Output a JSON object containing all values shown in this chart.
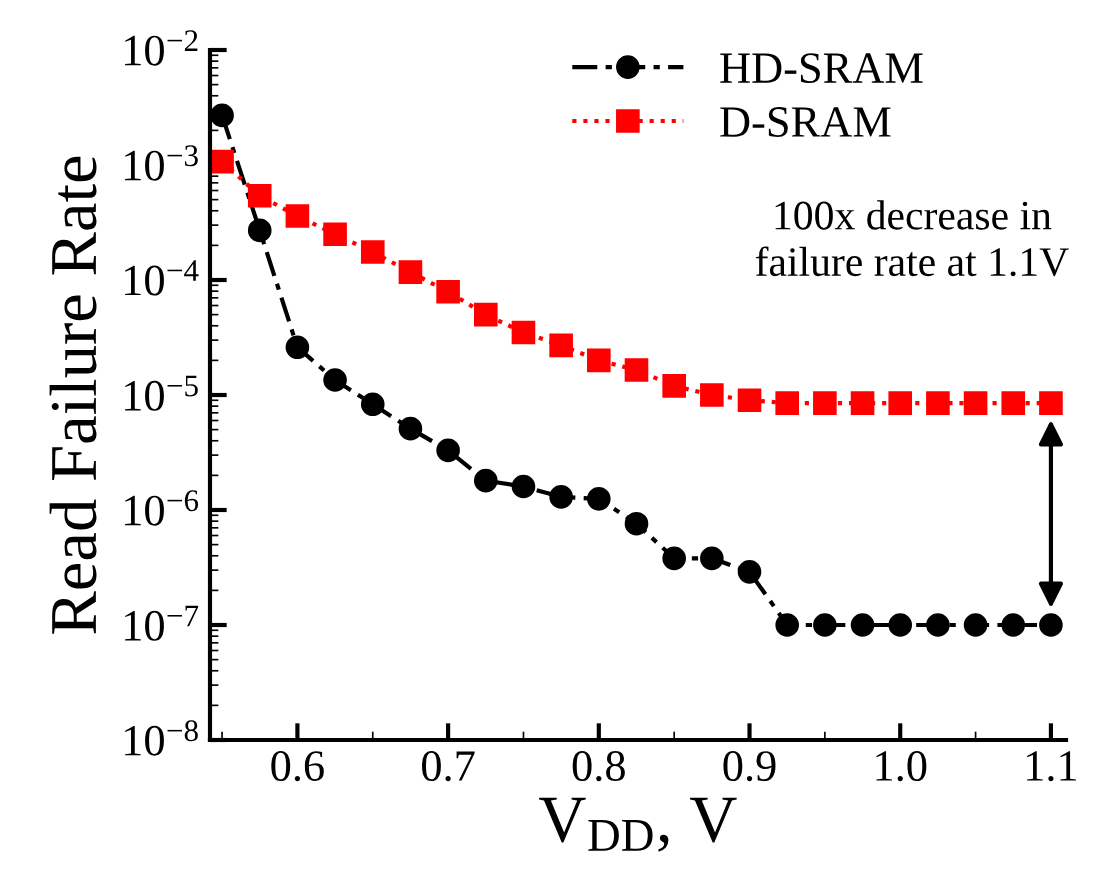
{
  "chart_data": {
    "type": "line",
    "xlabel": "V$_{DD}$, V",
    "ylabel": "Read Failure Rate",
    "x": [
      0.55,
      0.575,
      0.6,
      0.625,
      0.65,
      0.675,
      0.7,
      0.725,
      0.75,
      0.775,
      0.8,
      0.825,
      0.85,
      0.875,
      0.9,
      0.925,
      0.95,
      0.975,
      1.0,
      1.025,
      1.05,
      1.075,
      1.1
    ],
    "series": [
      {
        "name": "HD-SRAM",
        "color": "#000000",
        "marker": "circle",
        "line_style": "dashed",
        "values": [
          0.0027,
          0.00027,
          2.6e-05,
          1.35e-05,
          8.3e-06,
          5.1e-06,
          3.3e-06,
          1.8e-06,
          1.6e-06,
          1.3e-06,
          1.25e-06,
          7.6e-07,
          3.8e-07,
          3.8e-07,
          2.9e-07,
          1e-07,
          1e-07,
          1e-07,
          1e-07,
          1e-07,
          1e-07,
          1e-07,
          1e-07
        ]
      },
      {
        "name": "D-SRAM",
        "color": "#ff0000",
        "marker": "square",
        "line_style": "dotted",
        "values": [
          0.00107,
          0.00054,
          0.00036,
          0.00025,
          0.000175,
          0.000117,
          7.9e-05,
          5e-05,
          3.5e-05,
          2.7e-05,
          2e-05,
          1.65e-05,
          1.2e-05,
          1e-05,
          9e-06,
          8.5e-06,
          8.5e-06,
          8.5e-06,
          8.5e-06,
          8.5e-06,
          8.5e-06,
          8.5e-06,
          8.5e-06
        ]
      }
    ],
    "annotations": [
      "100x decrease in\nfailure rate at 1.1V"
    ],
    "log": "y",
    "legend": "top right",
    "grid": false,
    "xlim": [
      0.542,
      1.11
    ],
    "xticks": [
      0.6,
      0.7,
      0.8,
      0.9,
      {
        "value": 1.0,
        "label": "1.0"
      },
      1.1
    ],
    "ylim": [
      1e-08,
      0.01
    ],
    "yticks": [
      {
        "value": 1e-08,
        "label": "10$^{−8}$"
      },
      {
        "value": 1e-07,
        "label": "10$^{−7}$"
      },
      {
        "value": 1e-06,
        "label": "10$^{−6}$"
      },
      {
        "value": 1e-05,
        "label": "10$^{−5}$"
      },
      {
        "value": 0.0001,
        "label": "10$^{−4}$"
      },
      {
        "value": 0.001,
        "label": "10$^{−3}$"
      },
      {
        "value": 0.01,
        "label": "10$^{−2}$"
      }
    ]
  }
}
